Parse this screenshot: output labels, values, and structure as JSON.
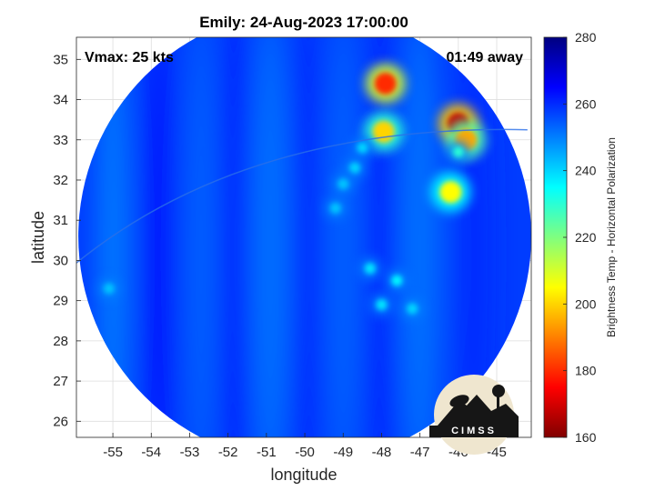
{
  "chart_data": {
    "type": "heatmap",
    "title": "Emily: 24-Aug-2023 17:00:00",
    "xlabel": "longitude",
    "ylabel": "latitude",
    "xlim": [
      -55.95,
      -44.1
    ],
    "ylim": [
      25.6,
      35.55
    ],
    "x_ticks": [
      -55,
      -54,
      -53,
      -52,
      -51,
      -50,
      -49,
      -48,
      -47,
      -46,
      -45
    ],
    "y_ticks": [
      26,
      27,
      28,
      29,
      30,
      31,
      32,
      33,
      34,
      35
    ],
    "grid": true,
    "annotations": {
      "left": "Vmax: 25 kts",
      "right": "01:49 away"
    },
    "colorbar": {
      "label": "Brightness Temp - Horizontal Polarization",
      "min": 160,
      "max": 280,
      "ticks": [
        160,
        180,
        200,
        220,
        240,
        260,
        280
      ],
      "colormap": "jet"
    },
    "swath": {
      "center": [
        -50.0,
        30.6
      ],
      "radius_deg": 5.9,
      "background_tb": 258
    },
    "features": [
      {
        "lon": -47.9,
        "lat": 34.4,
        "tb": 180
      },
      {
        "lon": -46.0,
        "lat": 33.4,
        "tb": 168
      },
      {
        "lon": -45.8,
        "lat": 33.0,
        "tb": 195
      },
      {
        "lon": -46.2,
        "lat": 31.7,
        "tb": 205
      },
      {
        "lon": -46.0,
        "lat": 32.7,
        "tb": 230
      },
      {
        "lon": -47.95,
        "lat": 33.2,
        "tb": 200
      },
      {
        "lon": -48.5,
        "lat": 32.8,
        "tb": 240
      },
      {
        "lon": -48.7,
        "lat": 32.3,
        "tb": 240
      },
      {
        "lon": -49.0,
        "lat": 31.9,
        "tb": 242
      },
      {
        "lon": -49.2,
        "lat": 31.3,
        "tb": 242
      },
      {
        "lon": -48.3,
        "lat": 29.8,
        "tb": 238
      },
      {
        "lon": -47.6,
        "lat": 29.5,
        "tb": 236
      },
      {
        "lon": -48.0,
        "lat": 28.9,
        "tb": 238
      },
      {
        "lon": -47.2,
        "lat": 28.8,
        "tb": 240
      },
      {
        "lon": -55.1,
        "lat": 29.3,
        "tb": 242
      }
    ]
  },
  "logo": {
    "text": "CIMSS"
  }
}
